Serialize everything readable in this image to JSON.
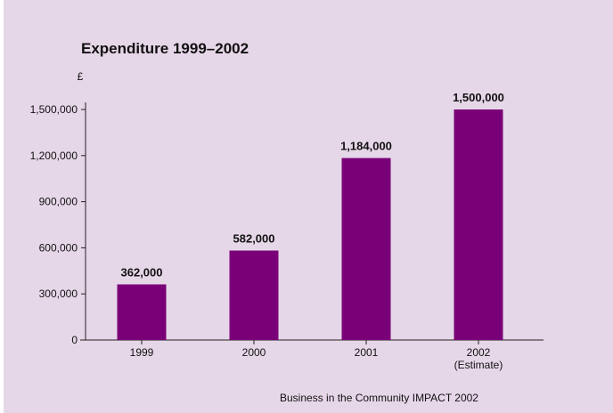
{
  "chart_data": {
    "type": "bar",
    "title": "Expenditure 1999–2002",
    "ylabel": "£",
    "xlabel": "",
    "categories": [
      "1999",
      "2000",
      "2001",
      "2002"
    ],
    "category_sublabels": [
      "",
      "",
      "",
      "(Estimate)"
    ],
    "values": [
      362000,
      582000,
      1184000,
      1500000
    ],
    "value_labels": [
      "362,000",
      "582,000",
      "1,184,000",
      "1,500,000"
    ],
    "ylim": [
      0,
      1500000
    ],
    "yticks": [
      0,
      300000,
      600000,
      900000,
      1200000,
      1500000
    ],
    "ytick_labels": [
      "0",
      "300,000",
      "600,000",
      "900,000",
      "1,200,000",
      "1,500,000"
    ],
    "grid": false,
    "legend": "none",
    "bar_color": "#7a0078",
    "background_color": "#e6d7e8"
  },
  "source_note": "Business in the Community IMPACT 2002"
}
